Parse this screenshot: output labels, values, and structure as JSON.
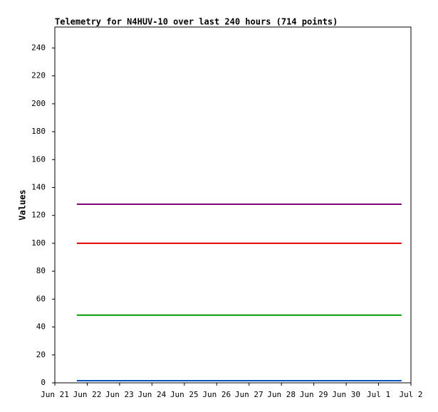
{
  "chart_data": {
    "type": "line",
    "title": "Telemetry for N4HUV-10 over last 240 hours (714 points)",
    "y_label": "Values",
    "xlim": [
      0,
      11
    ],
    "xticks": [
      {
        "value": 0,
        "label": "Jun 21"
      },
      {
        "value": 1,
        "label": "Jun 22"
      },
      {
        "value": 2,
        "label": "Jun 23"
      },
      {
        "value": 3,
        "label": "Jun 24"
      },
      {
        "value": 4,
        "label": "Jun 25"
      },
      {
        "value": 5,
        "label": "Jun 26"
      },
      {
        "value": 6,
        "label": "Jun 27"
      },
      {
        "value": 7,
        "label": "Jun 28"
      },
      {
        "value": 8,
        "label": "Jun 29"
      },
      {
        "value": 9,
        "label": "Jun 30"
      },
      {
        "value": 10,
        "label": "Jul 1"
      },
      {
        "value": 11,
        "label": "Jul 2"
      }
    ],
    "ylim": [
      0,
      255
    ],
    "yticks": [
      0,
      20,
      40,
      60,
      80,
      100,
      120,
      140,
      160,
      180,
      200,
      220,
      240
    ],
    "x": [
      0.68,
      10.71
    ],
    "series": [
      {
        "color": "#800080",
        "values": [
          128,
          128
        ]
      },
      {
        "color": "#e00000",
        "values": [
          100,
          100
        ]
      },
      {
        "color": "#00a000",
        "values": [
          48.5,
          48.5
        ]
      },
      {
        "color": "#0050c0",
        "values": [
          1.5,
          1.5
        ]
      }
    ]
  }
}
